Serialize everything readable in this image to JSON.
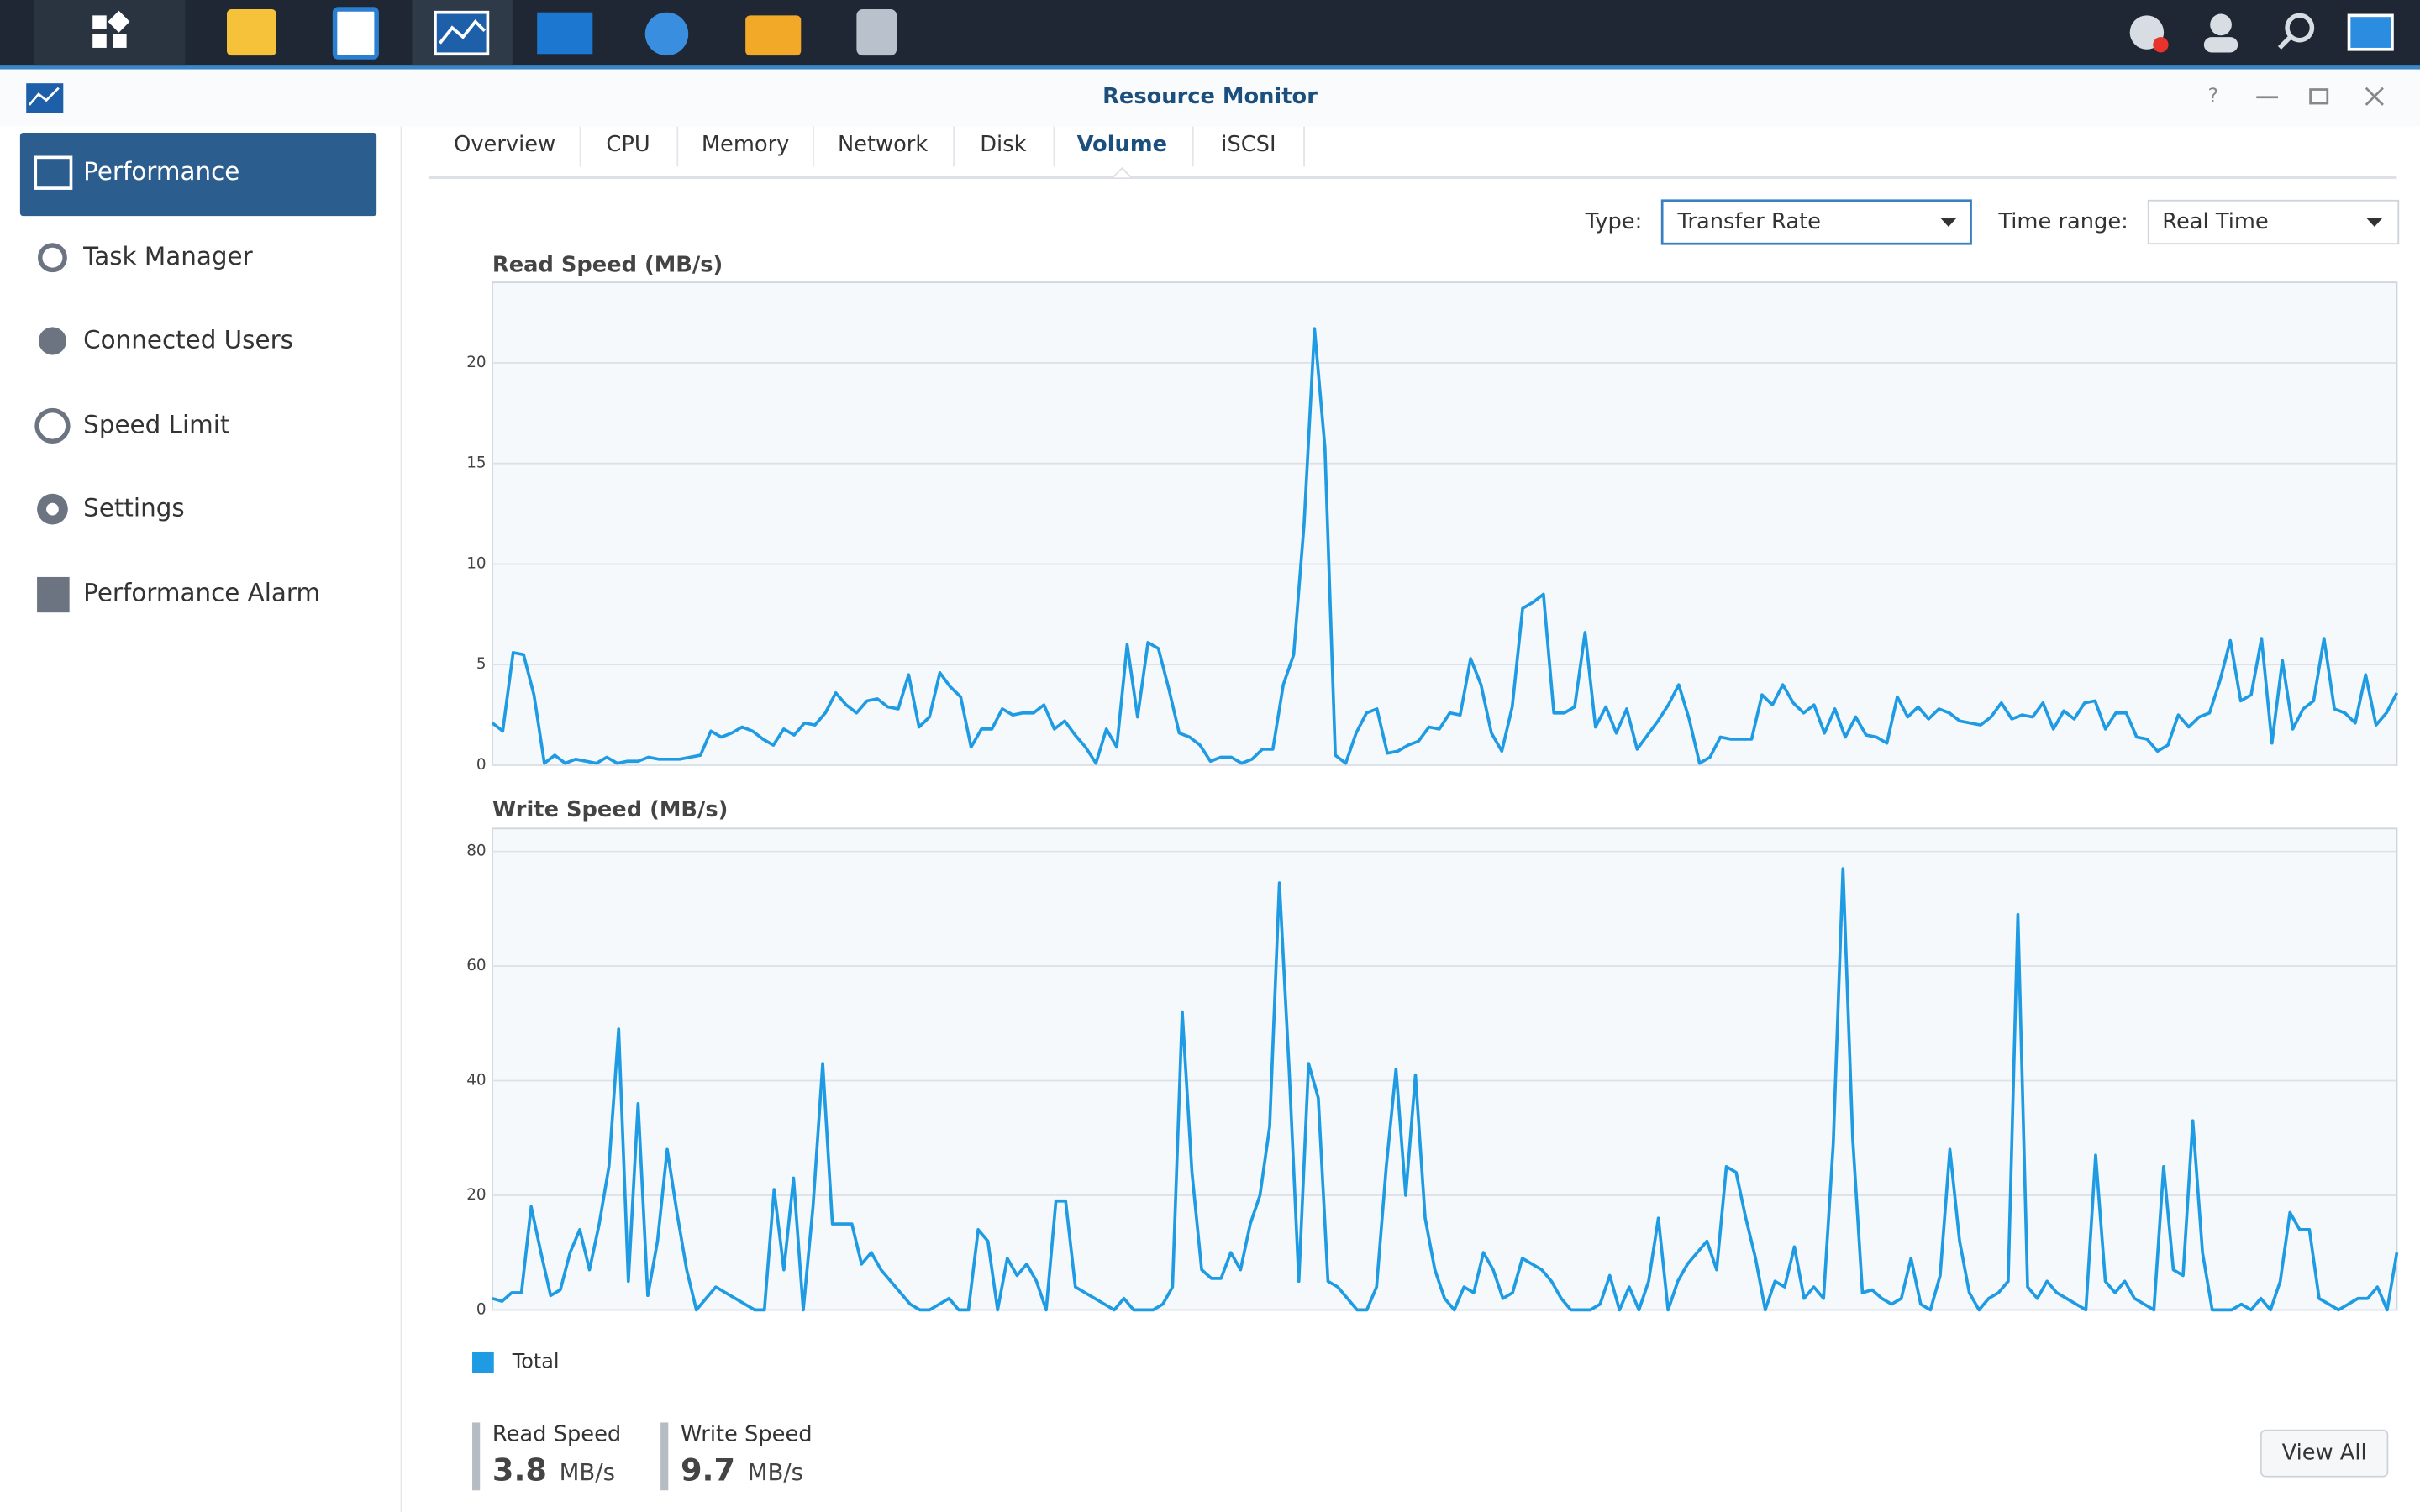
{
  "window": {
    "title": "Resource Monitor"
  },
  "sidebar": [
    "Performance",
    "Task Manager",
    "Connected Users",
    "Speed Limit",
    "Settings",
    "Performance Alarm"
  ],
  "tabs": [
    "Overview",
    "CPU",
    "Memory",
    "Network",
    "Disk",
    "Volume",
    "iSCSI"
  ],
  "controls": {
    "type_label": "Type:",
    "type_value": "Transfer Rate",
    "range_label": "Time range:",
    "range_value": "Real Time"
  },
  "chart_data": [
    {
      "type": "line",
      "title": "Read Speed (MB/s)",
      "ylim": [
        0,
        24
      ],
      "yticks": [
        0,
        5,
        10,
        15,
        20
      ],
      "grid": true,
      "series": [
        {
          "name": "Total",
          "color": "#1e9be2",
          "values": [
            2.1,
            1.7,
            5.6,
            5.5,
            3.5,
            0.1,
            0.5,
            0.1,
            0.3,
            0.2,
            0.1,
            0.4,
            0.1,
            0.2,
            0.2,
            0.4,
            0.3,
            0.3,
            0.3,
            0.4,
            0.5,
            1.7,
            1.4,
            1.6,
            1.9,
            1.7,
            1.3,
            1.0,
            1.8,
            1.5,
            2.1,
            2.0,
            2.6,
            3.6,
            3.0,
            2.6,
            3.2,
            3.3,
            2.9,
            2.8,
            4.5,
            1.9,
            2.4,
            4.6,
            3.9,
            3.4,
            0.9,
            1.8,
            1.8,
            2.8,
            2.5,
            2.6,
            2.6,
            3.0,
            1.8,
            2.2,
            1.5,
            0.9,
            0.1,
            1.8,
            0.9,
            6.0,
            2.4,
            6.1,
            5.8,
            3.8,
            1.6,
            1.4,
            1.0,
            0.2,
            0.4,
            0.4,
            0.1,
            0.3,
            0.8,
            0.8,
            4.0,
            5.5,
            12.0,
            21.7,
            15.8,
            0.5,
            0.1,
            1.6,
            2.6,
            2.8,
            0.6,
            0.7,
            1.0,
            1.2,
            1.9,
            1.8,
            2.6,
            2.5,
            5.3,
            4.0,
            1.6,
            0.7,
            2.9,
            7.8,
            8.1,
            8.5,
            2.6,
            2.6,
            2.9,
            6.6,
            1.9,
            2.9,
            1.6,
            2.8,
            0.8,
            1.5,
            2.2,
            3.0,
            4.0,
            2.3,
            0.1,
            0.4,
            1.4,
            1.3,
            1.3,
            1.3,
            3.5,
            3.0,
            4.0,
            3.1,
            2.6,
            3.0,
            1.6,
            2.8,
            1.4,
            2.4,
            1.5,
            1.4,
            1.1,
            3.4,
            2.4,
            2.9,
            2.3,
            2.8,
            2.6,
            2.2,
            2.1,
            2.0,
            2.4,
            3.1,
            2.3,
            2.5,
            2.4,
            3.1,
            1.8,
            2.7,
            2.3,
            3.1,
            3.2,
            1.8,
            2.6,
            2.6,
            1.4,
            1.3,
            0.7,
            1.0,
            2.5,
            1.9,
            2.4,
            2.6,
            4.2,
            6.2,
            3.2,
            3.5,
            6.3,
            1.1,
            5.2,
            1.8,
            2.8,
            3.2,
            6.3,
            2.8,
            2.6,
            2.1,
            4.5,
            2.0,
            2.6,
            3.6
          ]
        }
      ]
    },
    {
      "type": "line",
      "title": "Write Speed (MB/s)",
      "ylim": [
        0,
        84
      ],
      "yticks": [
        0,
        20,
        40,
        60,
        80
      ],
      "grid": true,
      "series": [
        {
          "color": "#1e9be2",
          "values": [
            2,
            1.5,
            3,
            3,
            18,
            10,
            2.5,
            3.5,
            10,
            14,
            7,
            15,
            25,
            49,
            5,
            36,
            2.5,
            12,
            28,
            17,
            7,
            0,
            2,
            4,
            3,
            2,
            1,
            0,
            0,
            21,
            7,
            23,
            0,
            18,
            43,
            15,
            15,
            15,
            8,
            10,
            7,
            5,
            3,
            1,
            0,
            0,
            1,
            2,
            0,
            0,
            14,
            12,
            0,
            9,
            6,
            8,
            5,
            0,
            19,
            19,
            4,
            3,
            2,
            1,
            0,
            2,
            0,
            0,
            0,
            1,
            4,
            52,
            24,
            7,
            5.5,
            5.5,
            10,
            7,
            15,
            20,
            32,
            74.5,
            42,
            5,
            43,
            37,
            5,
            4,
            2,
            0,
            0,
            4,
            25,
            42,
            20,
            41,
            16,
            7,
            2,
            0,
            4,
            3,
            10,
            7,
            2,
            3,
            9,
            8,
            7,
            5,
            2,
            0,
            0,
            0,
            1,
            6,
            0,
            4,
            0,
            5,
            16,
            0,
            5,
            8,
            10,
            12,
            7,
            25,
            24,
            16,
            9,
            0,
            5,
            4,
            11,
            2,
            4,
            2,
            29,
            77,
            30,
            3,
            3.5,
            2,
            1,
            2,
            9,
            1,
            0,
            6,
            28,
            12,
            3,
            0,
            2,
            3,
            5,
            69,
            4,
            2,
            5,
            3,
            2,
            1,
            0,
            27,
            5,
            3,
            5,
            2,
            1,
            0,
            25,
            7,
            6,
            33,
            10,
            0,
            0,
            0,
            1,
            0,
            2,
            0,
            5,
            17,
            14,
            14,
            2,
            1,
            0,
            1,
            2,
            2,
            4,
            0,
            10
          ]
        }
      ]
    }
  ],
  "summary": {
    "items": [
      {
        "label": "Read Speed",
        "value": 3.8,
        "unit": "MB/s"
      },
      {
        "label": "Write Speed",
        "value": 9.7,
        "unit": "MB/s"
      }
    ],
    "button": "View All"
  }
}
